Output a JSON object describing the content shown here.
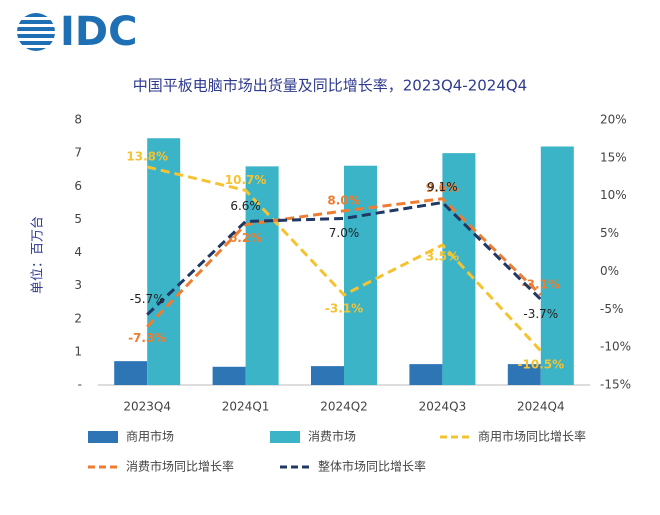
{
  "brand": "IDC",
  "chart_data": {
    "type": "bar",
    "title": "中国平板电脑市场出货量及同比增长率，2023Q4-2024Q4",
    "y_label": "单位：百万台",
    "categories": [
      "2023Q4",
      "2024Q1",
      "2024Q2",
      "2024Q3",
      "2024Q4"
    ],
    "ylim": [
      0,
      8
    ],
    "yticks": [
      {
        "value": 0,
        "label": "-"
      },
      1,
      2,
      3,
      4,
      5,
      6,
      7,
      8
    ],
    "y2lim": [
      -15,
      20
    ],
    "y2ticks": [
      {
        "value": -15,
        "label": "-15%"
      },
      {
        "value": -10,
        "label": "-10%"
      },
      {
        "value": -5,
        "label": "-5%"
      },
      {
        "value": 0,
        "label": "0%"
      },
      {
        "value": 5,
        "label": "5%"
      },
      {
        "value": 10,
        "label": "10%"
      },
      {
        "value": 15,
        "label": "15%"
      },
      {
        "value": 20,
        "label": "20%"
      }
    ],
    "series": [
      {
        "name": "商用市场",
        "type": "bar",
        "color": "#2e75b6",
        "values": [
          0.72,
          0.55,
          0.57,
          0.63,
          0.63
        ]
      },
      {
        "name": "消费市场",
        "type": "bar",
        "color": "#3bb4c8",
        "values": [
          7.45,
          6.6,
          6.62,
          7.0,
          7.2
        ]
      },
      {
        "name": "商用市场同比增长率",
        "type": "line",
        "axis": "y2",
        "dashed": true,
        "color": "#f5c332",
        "label_color": "#f5c332",
        "values": [
          13.8,
          10.7,
          -3.1,
          3.5,
          -10.5
        ],
        "value_labels": [
          "13.8%",
          "10.7%",
          "-3.1%",
          "3.5%",
          "-10.5%"
        ]
      },
      {
        "name": "消费市场同比增长率",
        "type": "line",
        "axis": "y2",
        "dashed": true,
        "color": "#ed7d31",
        "label_color": "#ed7d31",
        "values": [
          -7.3,
          6.2,
          8.0,
          9.6,
          -3.1
        ],
        "value_labels": [
          "-7.3%",
          "6.2%",
          "8.0%",
          "9.6%",
          "-3.1%"
        ]
      },
      {
        "name": "整体市场同比增长率",
        "type": "line",
        "axis": "y2",
        "dashed": true,
        "color": "#1f3864",
        "label_color": "#222222",
        "values": [
          -5.7,
          6.6,
          7.0,
          9.1,
          -3.7
        ],
        "value_labels": [
          "-5.7%",
          "6.6%",
          "7.0%",
          "9.1%",
          "-3.7%"
        ]
      }
    ]
  }
}
